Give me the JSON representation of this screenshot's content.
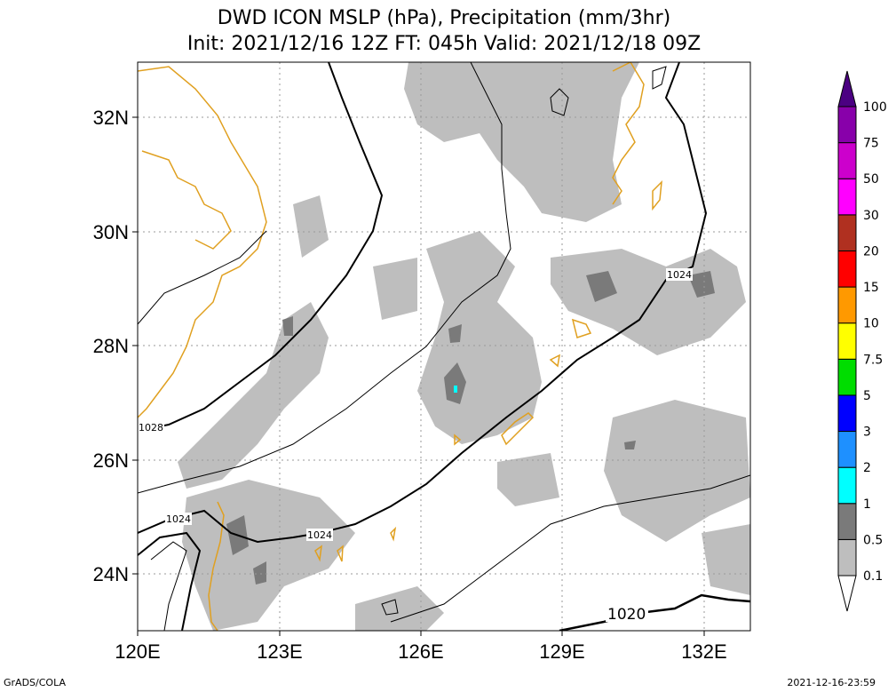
{
  "title": {
    "line1": "DWD ICON MSLP (hPa), Precipitation (mm/3hr)",
    "line2": "Init: 2021/12/16 12Z  FT: 045h  Valid: 2021/12/18 09Z"
  },
  "axes": {
    "lon_ticks": [
      "120E",
      "123E",
      "126E",
      "129E",
      "132E"
    ],
    "lat_ticks": [
      "32N",
      "30N",
      "28N",
      "26N",
      "24N"
    ]
  },
  "isobars": {
    "labels": [
      "1028",
      "1024",
      "1024",
      "1024",
      "1020"
    ]
  },
  "colorbar": {
    "levels": [
      "0.1",
      "0.5",
      "1",
      "2",
      "3",
      "5",
      "7.5",
      "10",
      "15",
      "20",
      "30",
      "50",
      "75",
      "100"
    ],
    "colors": [
      "#ffffff",
      "#bebebe",
      "#7a7a7a",
      "#00ffff",
      "#1e90ff",
      "#0000ff",
      "#00dd00",
      "#ffff00",
      "#ff9900",
      "#ff0000",
      "#b03020",
      "#ff00ff",
      "#cc00cc",
      "#8800aa",
      "#4b0082"
    ]
  },
  "colors": {
    "coastline": "#e0a020",
    "precip_light": "#bebebe",
    "precip_mid": "#7a7a7a",
    "grid": "#999999"
  },
  "footer": {
    "left": "GrADS/COLA",
    "right": "2021-12-16-23:59"
  }
}
